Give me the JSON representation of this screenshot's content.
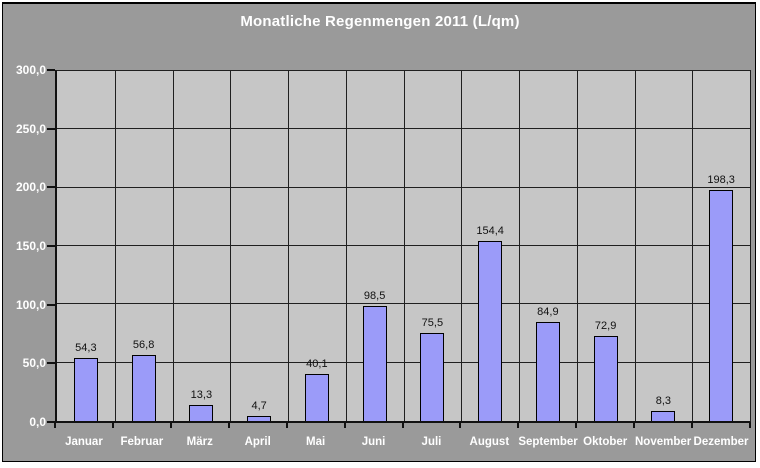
{
  "chart_data": {
    "type": "bar",
    "title": "Monatliche Regenmengen 2011 (L/qm)",
    "categories": [
      "Januar",
      "Februar",
      "März",
      "April",
      "Mai",
      "Juni",
      "Juli",
      "August",
      "September",
      "Oktober",
      "November",
      "Dezember"
    ],
    "values": [
      54.3,
      56.8,
      13.3,
      4.7,
      40.1,
      98.5,
      75.5,
      154.4,
      84.9,
      72.9,
      8.3,
      198.3
    ],
    "value_labels": [
      "54,3",
      "56,8",
      "13,3",
      "4,7",
      "40,1",
      "98,5",
      "75,5",
      "154,4",
      "84,9",
      "72,9",
      "8,3",
      "198,3"
    ],
    "xlabel": "",
    "ylabel": "",
    "ylim": [
      0,
      300
    ],
    "ytick_step": 50,
    "ytick_labels": [
      "0,0",
      "50,0",
      "100,0",
      "150,0",
      "200,0",
      "250,0",
      "300,0"
    ],
    "grid": true,
    "legend_position": "none",
    "colors": {
      "chart_background": "#9a9a9a",
      "plot_background": "#c6c6c6",
      "bar_fill": "#9b9bf9",
      "bar_border": "#000000",
      "gridline": "#1f1f1f",
      "axis_line": "#111111",
      "axis_text": "#ffffff",
      "data_label": "#111111",
      "title_text": "#ffffff",
      "frame_border": "#000000"
    }
  }
}
